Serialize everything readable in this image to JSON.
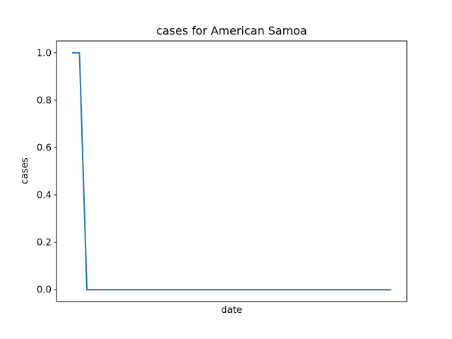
{
  "chart_data": {
    "type": "line",
    "title": "cases for American Samoa",
    "xlabel": "date",
    "ylabel": "cases",
    "x_tick_labels": [],
    "y_ticks": [
      0.0,
      0.2,
      0.4,
      0.6,
      0.8,
      1.0
    ],
    "y_tick_labels": [
      "0.0",
      "0.2",
      "0.4",
      "0.6",
      "0.8",
      "1.0"
    ],
    "ylim": [
      -0.05,
      1.05
    ],
    "grid": false,
    "series": [
      {
        "color": "#1f77b4",
        "values": [
          1,
          1,
          0,
          0,
          0,
          0,
          0,
          0,
          0,
          0,
          0,
          0,
          0,
          0,
          0,
          0,
          0,
          0,
          0,
          0,
          0,
          0,
          0,
          0,
          0,
          0,
          0,
          0,
          0,
          0,
          0,
          0,
          0,
          0,
          0,
          0,
          0,
          0,
          0,
          0,
          0,
          0,
          0,
          0
        ]
      }
    ]
  }
}
